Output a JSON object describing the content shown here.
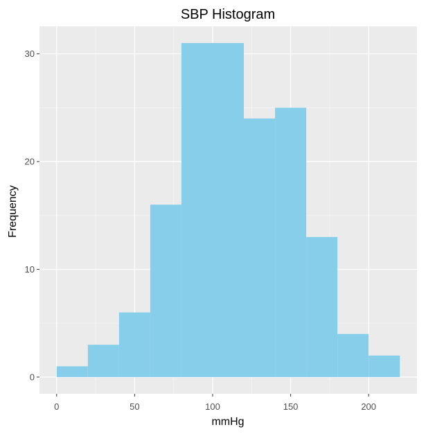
{
  "chart_data": {
    "type": "bar",
    "title": "SBP Histogram",
    "xlabel": "mmHg",
    "ylabel": "Frequency",
    "bins": [
      {
        "x0": 0,
        "x1": 20,
        "count": 1
      },
      {
        "x0": 20,
        "x1": 40,
        "count": 3
      },
      {
        "x0": 40,
        "x1": 60,
        "count": 6
      },
      {
        "x0": 60,
        "x1": 80,
        "count": 16
      },
      {
        "x0": 80,
        "x1": 100,
        "count": 31
      },
      {
        "x0": 100,
        "x1": 120,
        "count": 31
      },
      {
        "x0": 120,
        "x1": 140,
        "count": 24
      },
      {
        "x0": 140,
        "x1": 160,
        "count": 25
      },
      {
        "x0": 160,
        "x1": 180,
        "count": 13
      },
      {
        "x0": 180,
        "x1": 200,
        "count": 4
      },
      {
        "x0": 200,
        "x1": 220,
        "count": 2
      }
    ],
    "xlim": [
      -11,
      231
    ],
    "ylim": [
      -1.55,
      32.55
    ],
    "x_ticks": [
      0,
      50,
      100,
      150,
      200
    ],
    "x_minor_ticks": [
      25,
      75,
      125,
      175
    ],
    "y_ticks": [
      0,
      10,
      20,
      30
    ],
    "y_minor_ticks": [
      5,
      15,
      25
    ],
    "grid": true,
    "legend": "none",
    "colors": {
      "bar": "#87CEEB",
      "panel": "#EBEBEB",
      "grid_major": "#FFFFFF",
      "grid_minor": "#F5F5F5",
      "tick_label": "#4D4D4D",
      "tick_mark": "#333333",
      "text": "#000000"
    }
  }
}
